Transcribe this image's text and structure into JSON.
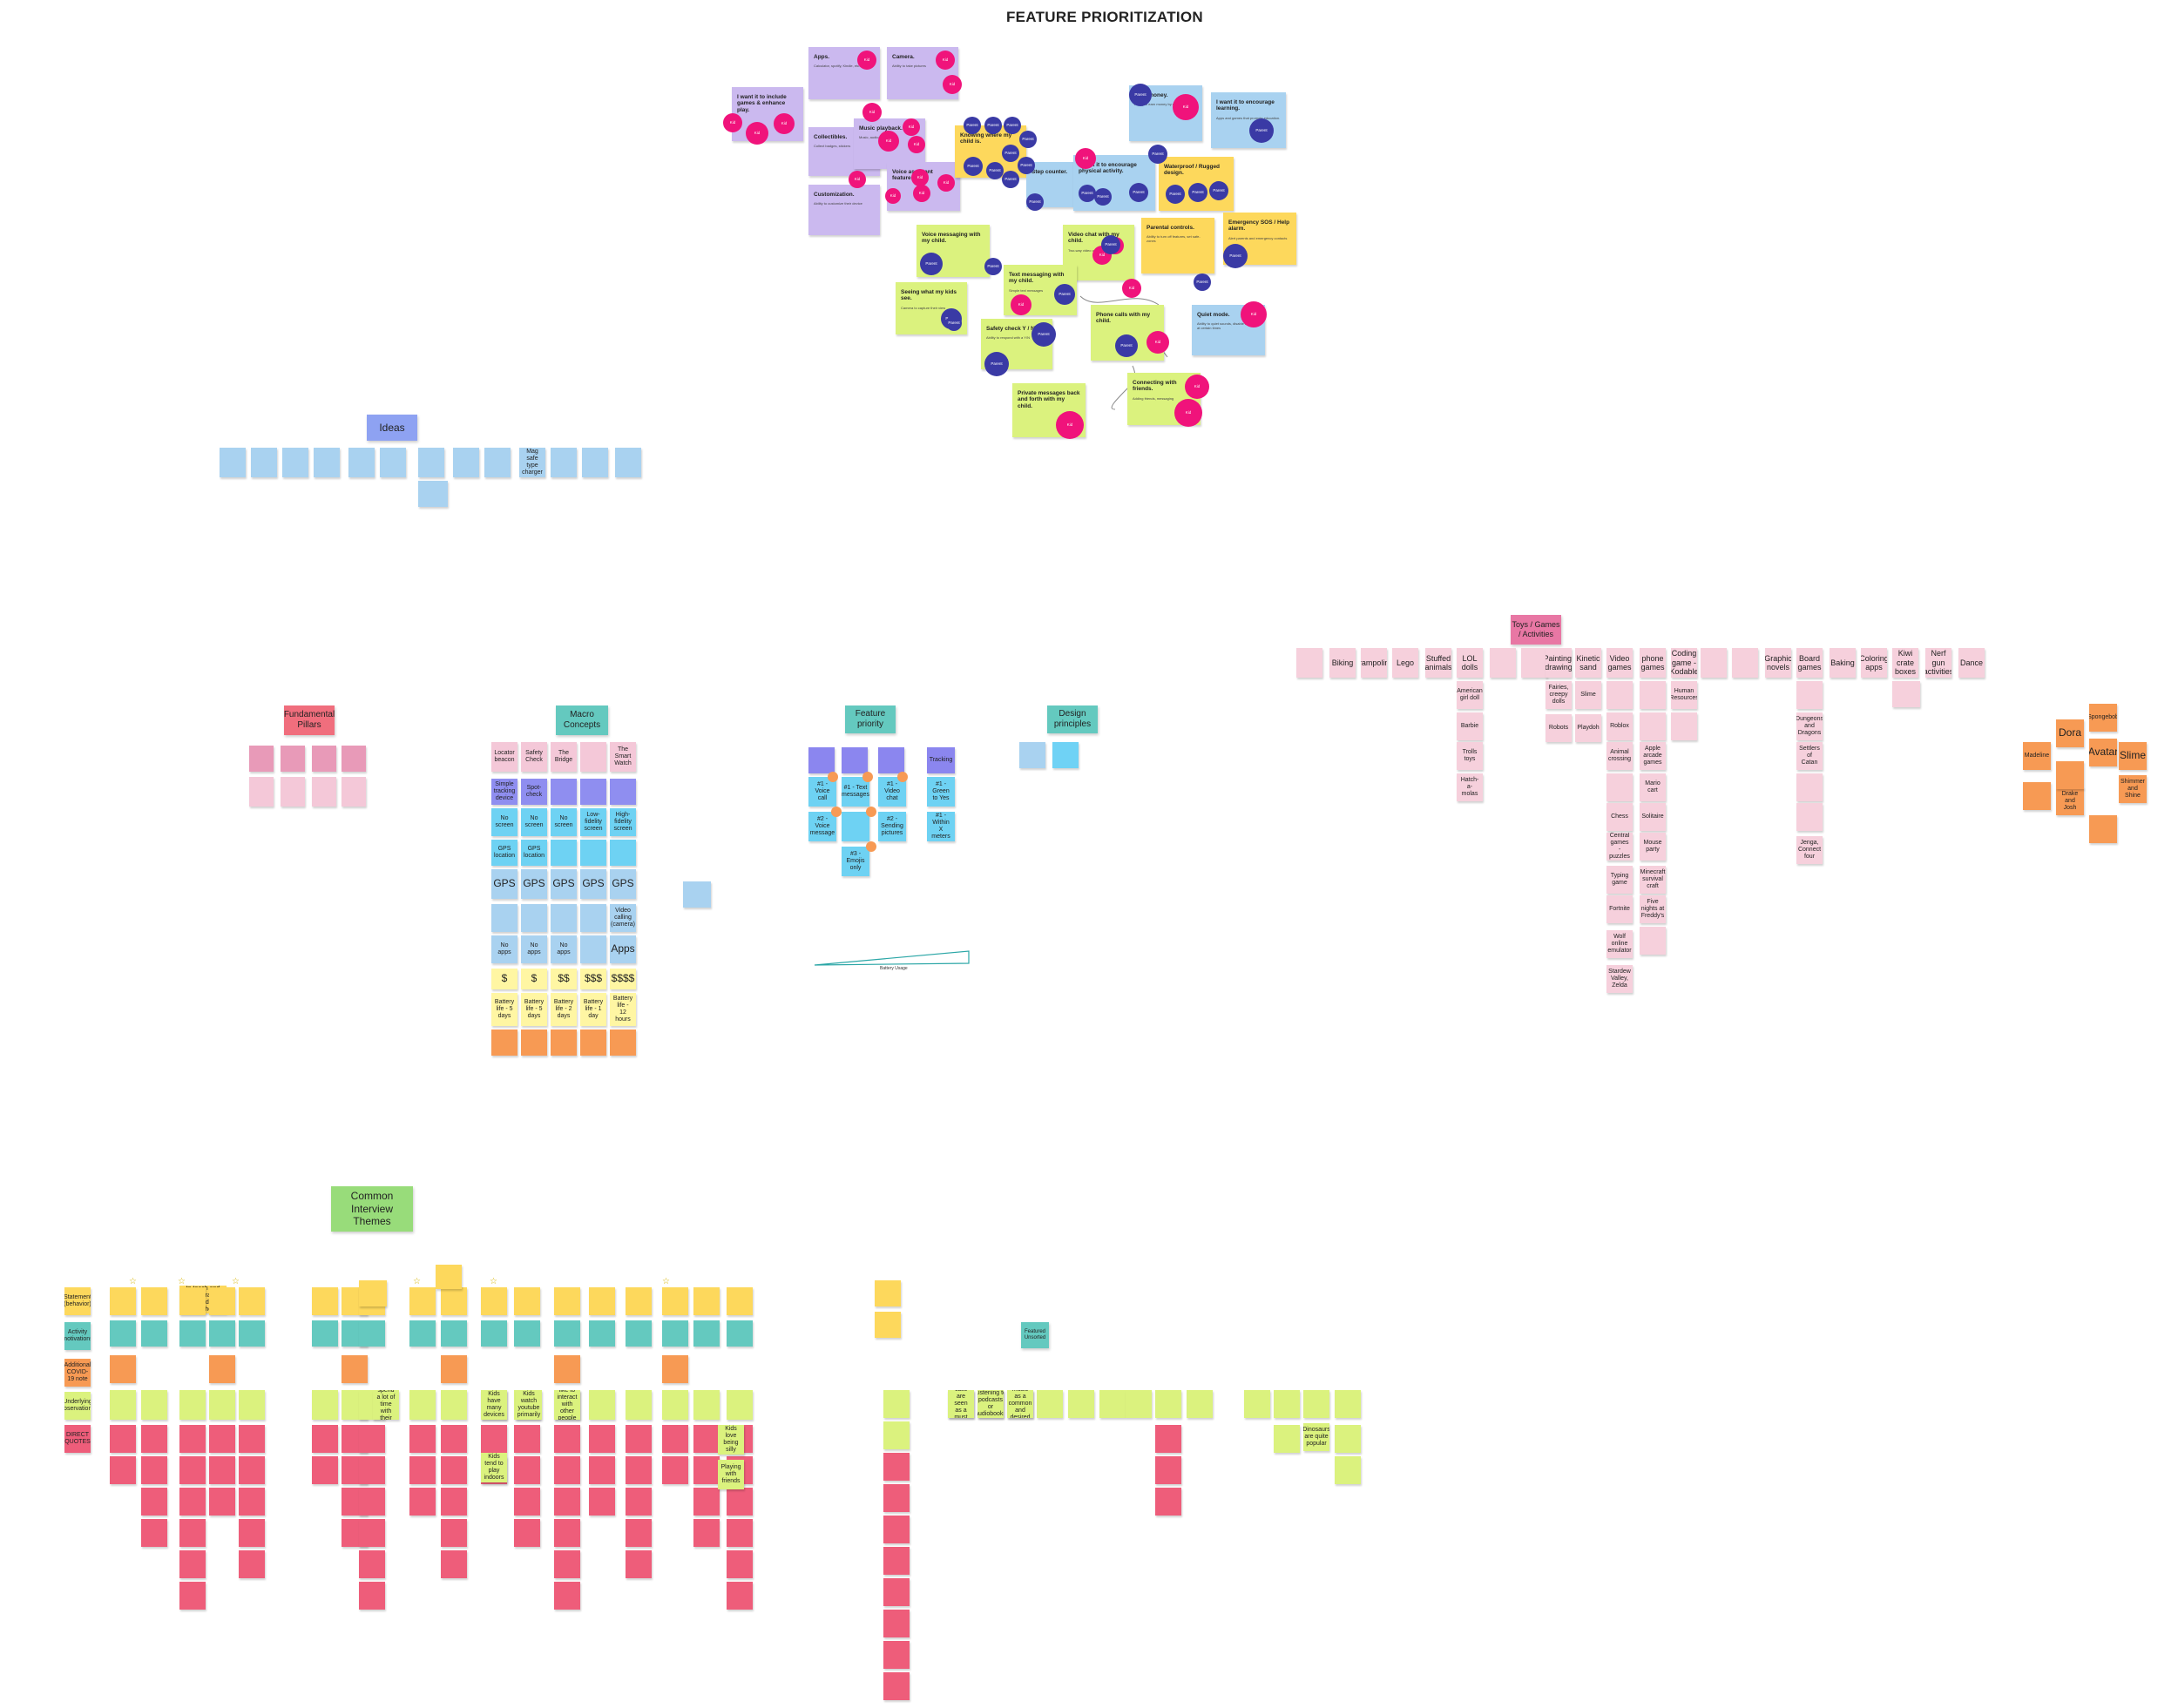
{
  "title": "FEATURE PRIORITIZATION",
  "colors": {
    "purple": "#cbb9ef",
    "yellow": "#fdd85c",
    "lightblue": "#a9d2f0",
    "green": "#dbf27e",
    "kid_dot": "#f0137b",
    "parent_dot": "#3a3aa5"
  },
  "headers": {
    "ideas": "Ideas",
    "pillars": "Fundamental Pillars",
    "macro": "Macro Concepts",
    "feature_priority": "Feature priority",
    "design_principles": "Design principles",
    "toys": "Toys / Games / Activities",
    "themes": "Common Interview Themes",
    "featured": "Featured Unsorted"
  },
  "fp_notes": [
    {
      "title": "I want it to include games & enhance play.",
      "desc": ""
    },
    {
      "title": "Apps.",
      "desc": "Calculator, spotify, Kindle, etc."
    },
    {
      "title": "Camera.",
      "desc": "Ability to take pictures"
    },
    {
      "title": "Collectibles.",
      "desc": "Collect badges, stickers"
    },
    {
      "title": "Music playback.",
      "desc": "Music, audio books"
    },
    {
      "title": "Customization.",
      "desc": "Ability to customize their device"
    },
    {
      "title": "Voice assistant features.",
      "desc": ""
    },
    {
      "title": "Knowing where my child is.",
      "desc": ""
    },
    {
      "title": "Step counter.",
      "desc": ""
    },
    {
      "title": "I want it to encourage physical activity.",
      "desc": ""
    },
    {
      "title": "Earn money.",
      "desc": "Ability to earn money by chores"
    },
    {
      "title": "I want it to encourage learning.",
      "desc": "Apps and games that promote education."
    },
    {
      "title": "Waterproof / Rugged design.",
      "desc": ""
    },
    {
      "title": "Voice messaging with my child.",
      "desc": ""
    },
    {
      "title": "Video chat with my child.",
      "desc": "Two-way video communication"
    },
    {
      "title": "Parental controls.",
      "desc": "Ability to turn off features, set safe-zones"
    },
    {
      "title": "Emergency SOS / Help alarm.",
      "desc": "Alert parents and emergency contacts"
    },
    {
      "title": "Seeing what my kids see.",
      "desc": "Camera to capture their view"
    },
    {
      "title": "Text messaging with my child.",
      "desc": "Simple text messages"
    },
    {
      "title": "Safety check Y / N",
      "desc": "Ability to respond with a Y/N"
    },
    {
      "title": "Phone calls with my child.",
      "desc": ""
    },
    {
      "title": "Quiet mode.",
      "desc": "Ability to quiet sounds, disable features at certain times"
    },
    {
      "title": "Connecting with friends.",
      "desc": "Adding friends, messaging"
    },
    {
      "title": "Private messages back and forth with my child.",
      "desc": ""
    }
  ],
  "dots": {
    "kid": "Kid",
    "parent": "Parent"
  },
  "macro_columns": [
    {
      "name": "Locator beacon",
      "cells": [
        "Simple tracking device",
        "No screen",
        "GPS location",
        "GPS",
        "",
        "No apps",
        "$",
        "Battery life - 5 days",
        ""
      ]
    },
    {
      "name": "Safety Check",
      "cells": [
        "Spot-check",
        "No screen",
        "GPS location",
        "GPS",
        "",
        "No apps",
        "$",
        "Battery life - 5 days",
        ""
      ]
    },
    {
      "name": "The Bridge",
      "cells": [
        "",
        "No screen",
        "",
        "GPS",
        "",
        "No apps",
        "$$",
        "Battery life - 2 days",
        ""
      ]
    },
    {
      "name": "",
      "cells": [
        "",
        "Low-fidelity screen",
        "",
        "GPS",
        "",
        "",
        "$$$",
        "Battery life - 1 day",
        ""
      ]
    },
    {
      "name": "The Smart Watch",
      "cells": [
        "",
        "High-fidelity screen",
        "",
        "GPS",
        "Video calling (camera)",
        "Apps",
        "$$$$",
        "Battery life - 12 hours",
        ""
      ]
    }
  ],
  "feature_priority": {
    "items": [
      "#1 - Voice call",
      "#1 - Text messages",
      "#1 - Video chat",
      "#1 - Green to Yes",
      "#2 - Voice message",
      "",
      "#2 - Sending pictures",
      "#1 - Within X meters",
      "",
      "#3 - Emojis only",
      "",
      ""
    ],
    "tracking": "Tracking",
    "battery": "Battery Usage"
  },
  "ideas_texts": [
    "",
    "",
    "",
    "",
    "",
    "",
    "",
    "",
    "",
    "Mag safe type charger",
    "",
    "",
    ""
  ],
  "toys_items": [
    "",
    "Biking",
    "Trampoline",
    "Lego",
    "Stuffed animals",
    "LOL dolls",
    "",
    "",
    "Painting, drawing",
    "Kinetic sand",
    "Video games",
    "phone games",
    "Coding game - Kodable",
    "",
    "",
    "Graphic novels",
    "Board games",
    "Baking",
    "Coloring apps",
    "Kiwi crate boxes",
    "Nerf gun activities",
    "Dance"
  ],
  "toys_columns": {
    "col1": [
      "American girl doll",
      "Barbie",
      "Trolls toys",
      "Hatch-a-molas"
    ],
    "col2": [
      "Fairies, creepy dolls",
      "Robots"
    ],
    "col3": [
      "Slime",
      "Playdoh"
    ],
    "col4": [
      "",
      "Roblox",
      "Animal crossing",
      "",
      "Chess",
      "Central games - puzzles",
      "Typing game",
      "Fortnite",
      "Wolf online emulator",
      "Stardew Valley, Zelda"
    ],
    "col5": [
      "",
      "",
      "Apple arcade games",
      "Mario cart",
      "Solitaire",
      "Mouse party",
      "Minecraft survival craft",
      "Five nights at Freddy's",
      ""
    ],
    "col6": [
      "Human Resources",
      ""
    ],
    "col7": [
      "",
      "Dungeons and Dragons",
      "Settlers of Catan",
      "",
      "",
      "Jenga, Connect four"
    ]
  },
  "orange_group": [
    "Spongebob",
    "Dora",
    "Avatar",
    "Slime",
    "Madeline",
    "Shimmer and Shine",
    "Drake and Josh",
    "",
    "",
    ""
  ],
  "themes_row": {
    "labels": [
      "Statement (behavior)",
      "Activity (motivations)",
      "Additional COVID-19 note",
      "Underlying observations",
      "DIRECT QUOTES"
    ],
    "highlight": "Parents want to teach and encourage independence with their children",
    "green_big": [
      "Kids spend a lot of time with their friends",
      "Kids have many devices",
      "Kids watch youtube primarily",
      "Kids like to interact with other people / kids",
      "Kids tend to play indoors",
      "Kids love being silly",
      "Playing with friends"
    ]
  },
  "featured_items": [
    "Video calls are seen as a must have",
    "Listening to podcasts or audiobooks",
    "Playing music as a common and desired feature",
    "Dinosaurs are quite popular"
  ]
}
